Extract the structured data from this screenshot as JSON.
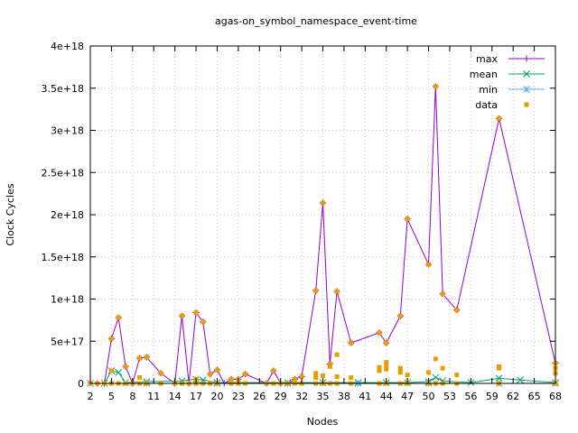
{
  "chart_data": {
    "type": "line",
    "title": "agas-on_symbol_namespace_event-time",
    "xlabel": "Nodes",
    "ylabel": "Clock Cycles",
    "xlim": [
      2,
      68
    ],
    "ylim": [
      0,
      4e+18
    ],
    "x_ticks": [
      "2",
      "5",
      "8",
      "11",
      "14",
      "17",
      "20",
      "23",
      "26",
      "29",
      "32",
      "35",
      "38",
      "41",
      "44",
      "47",
      "50",
      "53",
      "56",
      "59",
      "62",
      "65",
      "68"
    ],
    "y_ticks": [
      "0",
      "5e+17",
      "1e+18",
      "1.5e+18",
      "2e+18",
      "2.5e+18",
      "3e+18",
      "3.5e+18",
      "4e+18"
    ],
    "grid": true,
    "legend_position": "top-right",
    "series": [
      {
        "name": "max",
        "color": "#9400d3",
        "marker": "plus",
        "points": [
          [
            2,
            0
          ],
          [
            3,
            0
          ],
          [
            4,
            0
          ],
          [
            5,
            5.3e+17
          ],
          [
            6,
            7.8e+17
          ],
          [
            7,
            2e+17
          ],
          [
            8,
            0
          ],
          [
            9,
            3e+17
          ],
          [
            10,
            3.1e+17
          ],
          [
            12,
            1.2e+17
          ],
          [
            14,
            0
          ],
          [
            15,
            8e+17
          ],
          [
            16,
            0
          ],
          [
            17,
            8.4e+17
          ],
          [
            18,
            7.3e+17
          ],
          [
            19,
            1.1e+17
          ],
          [
            20,
            1.6e+17
          ],
          [
            21,
            0
          ],
          [
            22,
            5e+16
          ],
          [
            23,
            5e+16
          ],
          [
            24,
            1.1e+17
          ],
          [
            27,
            0
          ],
          [
            28,
            1.5e+17
          ],
          [
            29,
            0
          ],
          [
            30,
            0
          ],
          [
            31,
            5e+16
          ],
          [
            32,
            8e+16
          ],
          [
            34,
            1.1e+18
          ],
          [
            35,
            2.14e+18
          ],
          [
            36,
            2.3e+17
          ],
          [
            37,
            1.09e+18
          ],
          [
            39,
            4.8e+17
          ],
          [
            43,
            6e+17
          ],
          [
            44,
            4.8e+17
          ],
          [
            46,
            8e+17
          ],
          [
            47,
            1.95e+18
          ],
          [
            50,
            1.41e+18
          ],
          [
            51,
            3.52e+18
          ],
          [
            52,
            1.06e+18
          ],
          [
            54,
            8.7e+17
          ],
          [
            60,
            3.14e+18
          ],
          [
            68,
            2.4e+17
          ]
        ]
      },
      {
        "name": "mean",
        "color": "#009e73",
        "marker": "x",
        "points": [
          [
            2,
            0
          ],
          [
            4,
            0
          ],
          [
            5,
            1.5e+17
          ],
          [
            6,
            1.3e+17
          ],
          [
            7,
            1e+16
          ],
          [
            10,
            2e+16
          ],
          [
            15,
            3e+16
          ],
          [
            17,
            5e+16
          ],
          [
            18,
            4e+16
          ],
          [
            20,
            1e+16
          ],
          [
            30,
            1e+16
          ],
          [
            35,
            1e+16
          ],
          [
            40,
            1e+16
          ],
          [
            44,
            1e+16
          ],
          [
            47,
            1e+16
          ],
          [
            50,
            2e+16
          ],
          [
            51,
            7e+16
          ],
          [
            52,
            3e+16
          ],
          [
            56,
            1e+16
          ],
          [
            60,
            6e+16
          ],
          [
            63,
            4e+16
          ],
          [
            68,
            1e+16
          ]
        ]
      },
      {
        "name": "min",
        "color": "#56b4e9",
        "marker": "star",
        "points": [
          [
            2,
            0
          ],
          [
            10,
            0
          ],
          [
            20,
            0
          ],
          [
            30,
            0
          ],
          [
            40,
            0
          ],
          [
            50,
            0
          ],
          [
            60,
            0
          ],
          [
            68,
            0
          ]
        ]
      },
      {
        "name": "data",
        "color": "#e69f00",
        "marker": "square",
        "points": [
          [
            2,
            0
          ],
          [
            3,
            0
          ],
          [
            4,
            0
          ],
          [
            5,
            5.3e+17
          ],
          [
            5,
            1.5e+17
          ],
          [
            5,
            0
          ],
          [
            6,
            7.8e+17
          ],
          [
            6,
            0
          ],
          [
            7,
            2e+17
          ],
          [
            7,
            0
          ],
          [
            8,
            0
          ],
          [
            9,
            3e+17
          ],
          [
            9,
            7e+16
          ],
          [
            9,
            0
          ],
          [
            10,
            3.1e+17
          ],
          [
            10,
            0
          ],
          [
            12,
            1.2e+17
          ],
          [
            12,
            0
          ],
          [
            14,
            0
          ],
          [
            15,
            8e+17
          ],
          [
            15,
            0
          ],
          [
            16,
            0
          ],
          [
            17,
            8.4e+17
          ],
          [
            17,
            5e+16
          ],
          [
            17,
            0
          ],
          [
            18,
            7.3e+17
          ],
          [
            18,
            0
          ],
          [
            19,
            1.1e+17
          ],
          [
            19,
            0
          ],
          [
            20,
            1.6e+17
          ],
          [
            20,
            0
          ],
          [
            22,
            5e+16
          ],
          [
            22,
            0
          ],
          [
            23,
            5e+16
          ],
          [
            23,
            0
          ],
          [
            24,
            1.1e+17
          ],
          [
            24,
            0
          ],
          [
            27,
            0
          ],
          [
            28,
            1.5e+17
          ],
          [
            28,
            0
          ],
          [
            29,
            0
          ],
          [
            30,
            0
          ],
          [
            31,
            5e+16
          ],
          [
            31,
            0
          ],
          [
            32,
            8e+16
          ],
          [
            32,
            0
          ],
          [
            34,
            1.1e+18
          ],
          [
            34,
            1.2e+17
          ],
          [
            34,
            7e+16
          ],
          [
            34,
            0
          ],
          [
            35,
            2.14e+18
          ],
          [
            35,
            9e+16
          ],
          [
            35,
            0
          ],
          [
            36,
            2.3e+17
          ],
          [
            36,
            2e+17
          ],
          [
            36,
            0
          ],
          [
            37,
            1.09e+18
          ],
          [
            37,
            3.4e+17
          ],
          [
            37,
            8e+16
          ],
          [
            37,
            0
          ],
          [
            39,
            4.8e+17
          ],
          [
            39,
            7e+16
          ],
          [
            39,
            0
          ],
          [
            43,
            6e+17
          ],
          [
            43,
            1.9e+17
          ],
          [
            43,
            1.5e+17
          ],
          [
            43,
            0
          ],
          [
            44,
            4.8e+17
          ],
          [
            44,
            2.5e+17
          ],
          [
            44,
            2.2e+17
          ],
          [
            44,
            1.7e+17
          ],
          [
            44,
            0
          ],
          [
            46,
            8e+17
          ],
          [
            46,
            1.8e+17
          ],
          [
            46,
            1.3e+17
          ],
          [
            46,
            0
          ],
          [
            47,
            1.95e+18
          ],
          [
            47,
            1e+17
          ],
          [
            47,
            0
          ],
          [
            50,
            1.41e+18
          ],
          [
            50,
            1.3e+17
          ],
          [
            50,
            0
          ],
          [
            51,
            3.52e+18
          ],
          [
            51,
            2.9e+17
          ],
          [
            51,
            0
          ],
          [
            52,
            1.06e+18
          ],
          [
            52,
            1.8e+17
          ],
          [
            52,
            0
          ],
          [
            54,
            8.7e+17
          ],
          [
            54,
            1e+17
          ],
          [
            54,
            0
          ],
          [
            60,
            3.14e+18
          ],
          [
            60,
            2e+17
          ],
          [
            60,
            1.8e+17
          ],
          [
            60,
            0
          ],
          [
            68,
            2.4e+17
          ],
          [
            68,
            1.8e+17
          ],
          [
            68,
            1.2e+17
          ],
          [
            68,
            0
          ]
        ]
      }
    ]
  }
}
